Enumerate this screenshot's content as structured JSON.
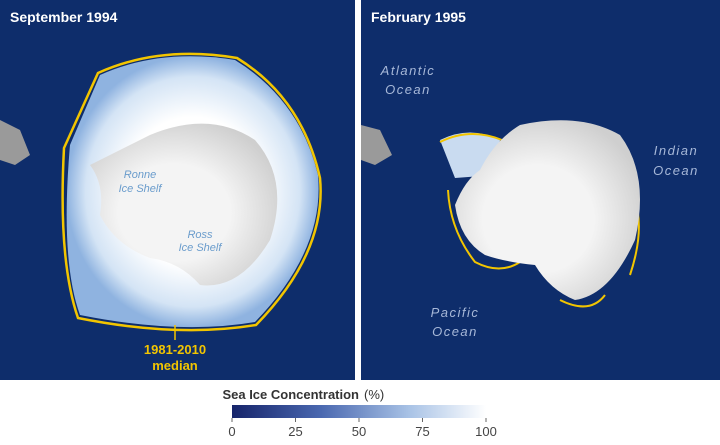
{
  "panels": [
    {
      "title": "September 1994",
      "labels": [
        {
          "lines": [
            "Ronne",
            "Ice Shelf"
          ]
        },
        {
          "lines": [
            "Ross",
            "Ice Shelf"
          ]
        }
      ],
      "median_label": {
        "lines": [
          "1981-2010",
          "median"
        ]
      }
    },
    {
      "title": "February 1995",
      "labels": [
        {
          "lines": [
            "Atlantic",
            "Ocean"
          ]
        },
        {
          "lines": [
            "Indian",
            "Ocean"
          ]
        },
        {
          "lines": [
            "Pacific",
            "Ocean"
          ]
        }
      ]
    }
  ],
  "legend": {
    "title": "Sea Ice Concentration",
    "unit": "(%)",
    "range": [
      0,
      100
    ],
    "ticks": [
      0,
      25,
      50,
      75,
      100
    ]
  }
}
